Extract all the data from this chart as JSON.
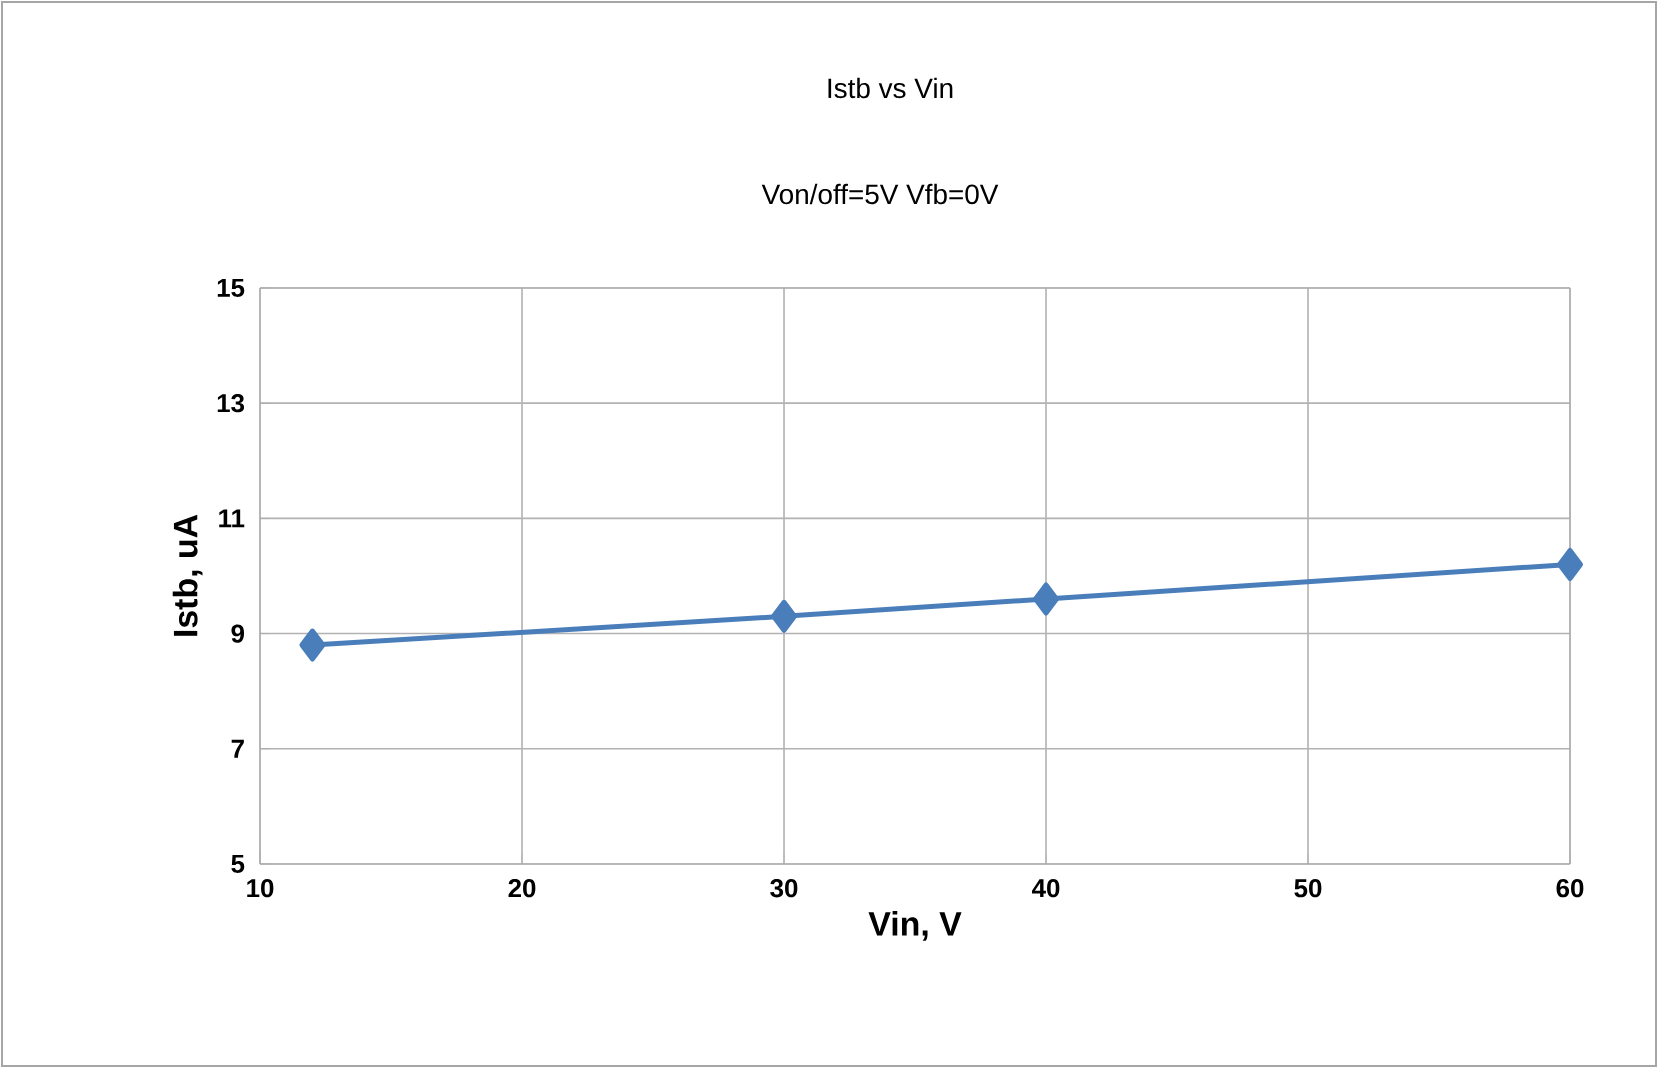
{
  "chart_data": {
    "type": "line",
    "title": "Istb vs Vin",
    "subtitle": "Von/off=5V  Vfb=0V",
    "xlabel": "Vin,  V",
    "ylabel": "Istb,  uA",
    "x": [
      12,
      30,
      40,
      60
    ],
    "series": [
      {
        "color": "#4a7ebb",
        "values": [
          8.8,
          9.3,
          9.6,
          10.2
        ]
      }
    ],
    "xlim": [
      10,
      60
    ],
    "xticks": [
      10,
      20,
      30,
      40,
      50,
      60
    ],
    "ylim": [
      5,
      15
    ],
    "yticks": [
      5,
      7,
      9,
      11,
      13,
      15
    ],
    "grid": true,
    "marker": "diamond",
    "line_style": "solid"
  }
}
